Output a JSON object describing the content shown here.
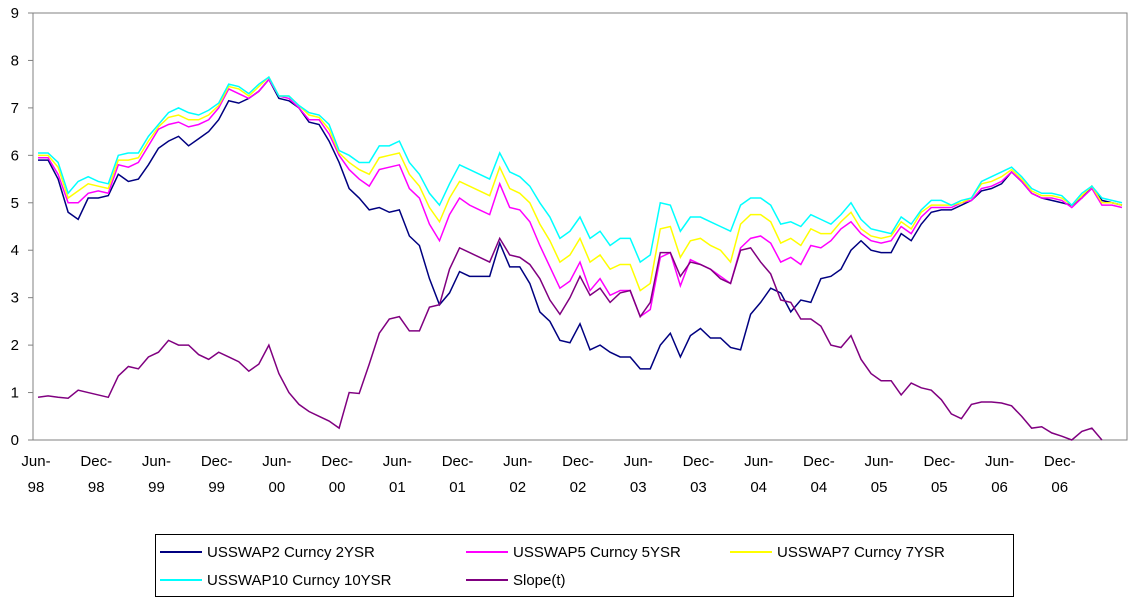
{
  "chart_data": {
    "type": "line",
    "categories": [
      "Jun-\n98",
      null,
      null,
      null,
      null,
      null,
      "Dec-\n98",
      null,
      null,
      null,
      null,
      null,
      "Jun-\n99",
      null,
      null,
      null,
      null,
      null,
      "Dec-\n99",
      null,
      null,
      null,
      null,
      null,
      "Jun-\n00",
      null,
      null,
      null,
      null,
      null,
      "Dec-\n00",
      null,
      null,
      null,
      null,
      null,
      "Jun-\n01",
      null,
      null,
      null,
      null,
      null,
      "Dec-\n01",
      null,
      null,
      null,
      null,
      null,
      "Jun-\n02",
      null,
      null,
      null,
      null,
      null,
      "Dec-\n02",
      null,
      null,
      null,
      null,
      null,
      "Jun-\n03",
      null,
      null,
      null,
      null,
      null,
      "Dec-\n03",
      null,
      null,
      null,
      null,
      null,
      "Jun-\n04",
      null,
      null,
      null,
      null,
      null,
      "Dec-\n04",
      null,
      null,
      null,
      null,
      null,
      "Jun-\n05",
      null,
      null,
      null,
      null,
      null,
      "Dec-\n05",
      null,
      null,
      null,
      null,
      null,
      "Jun-\n06",
      null,
      null,
      null,
      null,
      null,
      "Dec-\n06",
      null,
      null,
      null,
      null,
      null,
      null
    ],
    "series": [
      {
        "name": "USSWAP2 Curncy 2YSR",
        "color": "#000080",
        "values": [
          5.9,
          5.9,
          5.5,
          4.8,
          4.65,
          5.1,
          5.1,
          5.15,
          5.6,
          5.45,
          5.5,
          5.8,
          6.15,
          6.3,
          6.4,
          6.2,
          6.35,
          6.5,
          6.75,
          7.15,
          7.1,
          7.2,
          7.35,
          7.6,
          7.2,
          7.15,
          7.0,
          6.7,
          6.65,
          6.3,
          5.85,
          5.3,
          5.1,
          4.85,
          4.9,
          4.8,
          4.85,
          4.3,
          4.1,
          3.4,
          2.85,
          3.1,
          3.55,
          3.45,
          3.45,
          3.45,
          4.15,
          3.65,
          3.65,
          3.3,
          2.7,
          2.5,
          2.1,
          2.05,
          2.45,
          1.9,
          2.0,
          1.85,
          1.75,
          1.75,
          1.5,
          1.5,
          2.0,
          2.25,
          1.75,
          2.2,
          2.35,
          2.15,
          2.15,
          1.95,
          1.9,
          2.65,
          2.9,
          3.2,
          3.1,
          2.7,
          2.95,
          2.9,
          3.4,
          3.45,
          3.6,
          4.0,
          4.2,
          4.0,
          3.95,
          3.95,
          4.35,
          4.2,
          4.55,
          4.8,
          4.85,
          4.85,
          4.95,
          5.05,
          5.25,
          5.3,
          5.4,
          5.65,
          5.45,
          5.2,
          5.1,
          5.05,
          5.0,
          4.95,
          5.1,
          5.35,
          5.05,
          5.0,
          4.95
        ]
      },
      {
        "name": "USSWAP5 Curncy 5YSR",
        "color": "#ff00ff",
        "values": [
          5.95,
          5.95,
          5.6,
          5.0,
          5.0,
          5.2,
          5.25,
          5.2,
          5.8,
          5.75,
          5.85,
          6.2,
          6.55,
          6.65,
          6.7,
          6.6,
          6.65,
          6.75,
          7.0,
          7.4,
          7.3,
          7.2,
          7.35,
          7.6,
          7.25,
          7.2,
          7.0,
          6.75,
          6.75,
          6.45,
          6.0,
          5.7,
          5.5,
          5.35,
          5.7,
          5.75,
          5.8,
          5.3,
          5.1,
          4.55,
          4.2,
          4.75,
          5.1,
          4.95,
          4.85,
          4.75,
          5.4,
          4.9,
          4.85,
          4.6,
          4.1,
          3.65,
          3.2,
          3.35,
          3.75,
          3.15,
          3.4,
          3.05,
          3.15,
          3.15,
          2.6,
          2.75,
          3.85,
          3.95,
          3.25,
          3.8,
          3.7,
          3.6,
          3.45,
          3.3,
          4.05,
          4.25,
          4.3,
          4.15,
          3.75,
          3.85,
          3.7,
          4.1,
          4.05,
          4.2,
          4.45,
          4.6,
          4.35,
          4.2,
          4.15,
          4.2,
          4.5,
          4.35,
          4.7,
          4.9,
          4.9,
          4.9,
          5.0,
          5.05,
          5.3,
          5.35,
          5.45,
          5.65,
          5.45,
          5.2,
          5.1,
          5.1,
          5.05,
          4.9,
          5.1,
          5.3,
          4.95,
          4.95,
          4.9
        ]
      },
      {
        "name": "USSWAP7 Curncy 7YSR",
        "color": "#ffff00",
        "values": [
          6.0,
          6.0,
          5.75,
          5.1,
          5.25,
          5.4,
          5.35,
          5.3,
          5.9,
          5.9,
          5.95,
          6.3,
          6.6,
          6.8,
          6.85,
          6.75,
          6.75,
          6.85,
          7.05,
          7.45,
          7.4,
          7.25,
          7.45,
          7.65,
          7.25,
          7.25,
          7.05,
          6.85,
          6.8,
          6.55,
          6.05,
          5.85,
          5.7,
          5.6,
          5.95,
          6.0,
          6.05,
          5.6,
          5.35,
          4.9,
          4.6,
          5.1,
          5.45,
          5.35,
          5.25,
          5.15,
          5.75,
          5.3,
          5.2,
          5.0,
          4.55,
          4.2,
          3.75,
          3.9,
          4.25,
          3.75,
          3.9,
          3.6,
          3.7,
          3.7,
          3.15,
          3.3,
          4.45,
          4.5,
          3.85,
          4.2,
          4.25,
          4.1,
          4.0,
          3.75,
          4.55,
          4.75,
          4.75,
          4.6,
          4.15,
          4.25,
          4.1,
          4.45,
          4.35,
          4.35,
          4.6,
          4.8,
          4.45,
          4.3,
          4.25,
          4.3,
          4.6,
          4.45,
          4.8,
          4.95,
          4.95,
          4.95,
          5.0,
          5.1,
          5.4,
          5.45,
          5.55,
          5.7,
          5.5,
          5.25,
          5.15,
          5.15,
          5.1,
          4.95,
          5.15,
          5.35,
          5.0,
          5.0,
          4.95
        ]
      },
      {
        "name": "USSWAP10 Curncy 10YSR",
        "color": "#00ffff",
        "values": [
          6.05,
          6.05,
          5.85,
          5.2,
          5.45,
          5.55,
          5.45,
          5.4,
          6.0,
          6.05,
          6.05,
          6.4,
          6.65,
          6.9,
          7.0,
          6.9,
          6.85,
          6.95,
          7.1,
          7.5,
          7.45,
          7.3,
          7.5,
          7.65,
          7.25,
          7.25,
          7.05,
          6.9,
          6.85,
          6.65,
          6.1,
          6.0,
          5.85,
          5.85,
          6.2,
          6.2,
          6.3,
          5.85,
          5.6,
          5.2,
          4.95,
          5.4,
          5.8,
          5.7,
          5.6,
          5.5,
          6.05,
          5.65,
          5.55,
          5.35,
          5.0,
          4.7,
          4.25,
          4.4,
          4.7,
          4.25,
          4.4,
          4.1,
          4.25,
          4.25,
          3.75,
          3.9,
          5.0,
          4.95,
          4.4,
          4.7,
          4.7,
          4.6,
          4.5,
          4.4,
          4.95,
          5.1,
          5.1,
          4.95,
          4.55,
          4.6,
          4.5,
          4.75,
          4.65,
          4.55,
          4.75,
          5.0,
          4.65,
          4.45,
          4.4,
          4.35,
          4.7,
          4.55,
          4.85,
          5.05,
          5.05,
          4.95,
          5.05,
          5.1,
          5.45,
          5.55,
          5.65,
          5.75,
          5.55,
          5.3,
          5.2,
          5.2,
          5.15,
          4.95,
          5.2,
          5.35,
          5.1,
          5.05,
          5.0
        ]
      },
      {
        "name": "Slope(t)",
        "color": "#800080",
        "values": [
          0.9,
          0.93,
          0.9,
          0.88,
          1.05,
          1.0,
          0.95,
          0.9,
          1.35,
          1.55,
          1.5,
          1.75,
          1.85,
          2.1,
          2.0,
          2.0,
          1.8,
          1.7,
          1.85,
          1.75,
          1.65,
          1.45,
          1.6,
          2.0,
          1.4,
          1.0,
          0.75,
          0.6,
          0.5,
          0.4,
          0.25,
          1.0,
          0.98,
          1.6,
          2.25,
          2.55,
          2.6,
          2.3,
          2.3,
          2.8,
          2.85,
          3.6,
          4.05,
          3.95,
          3.85,
          3.75,
          4.25,
          3.9,
          3.85,
          3.7,
          3.4,
          2.95,
          2.65,
          3.0,
          3.45,
          3.05,
          3.2,
          2.9,
          3.1,
          3.15,
          2.6,
          2.9,
          3.95,
          3.95,
          3.45,
          3.75,
          3.7,
          3.6,
          3.4,
          3.3,
          4.0,
          4.05,
          3.75,
          3.5,
          2.95,
          2.9,
          2.55,
          2.55,
          2.4,
          2.0,
          1.95,
          2.2,
          1.7,
          1.4,
          1.25,
          1.25,
          0.95,
          1.2,
          1.1,
          1.05,
          0.85,
          0.55,
          0.45,
          0.75,
          0.8,
          0.8,
          0.78,
          0.72,
          0.5,
          0.25,
          0.28,
          0.15,
          0.08,
          0.0,
          0.18,
          0.25,
          0.0,
          null,
          null
        ]
      }
    ],
    "ylim": [
      0,
      9
    ],
    "yticks": [
      0,
      1,
      2,
      3,
      4,
      5,
      6,
      7,
      8,
      9
    ],
    "grid": false
  }
}
